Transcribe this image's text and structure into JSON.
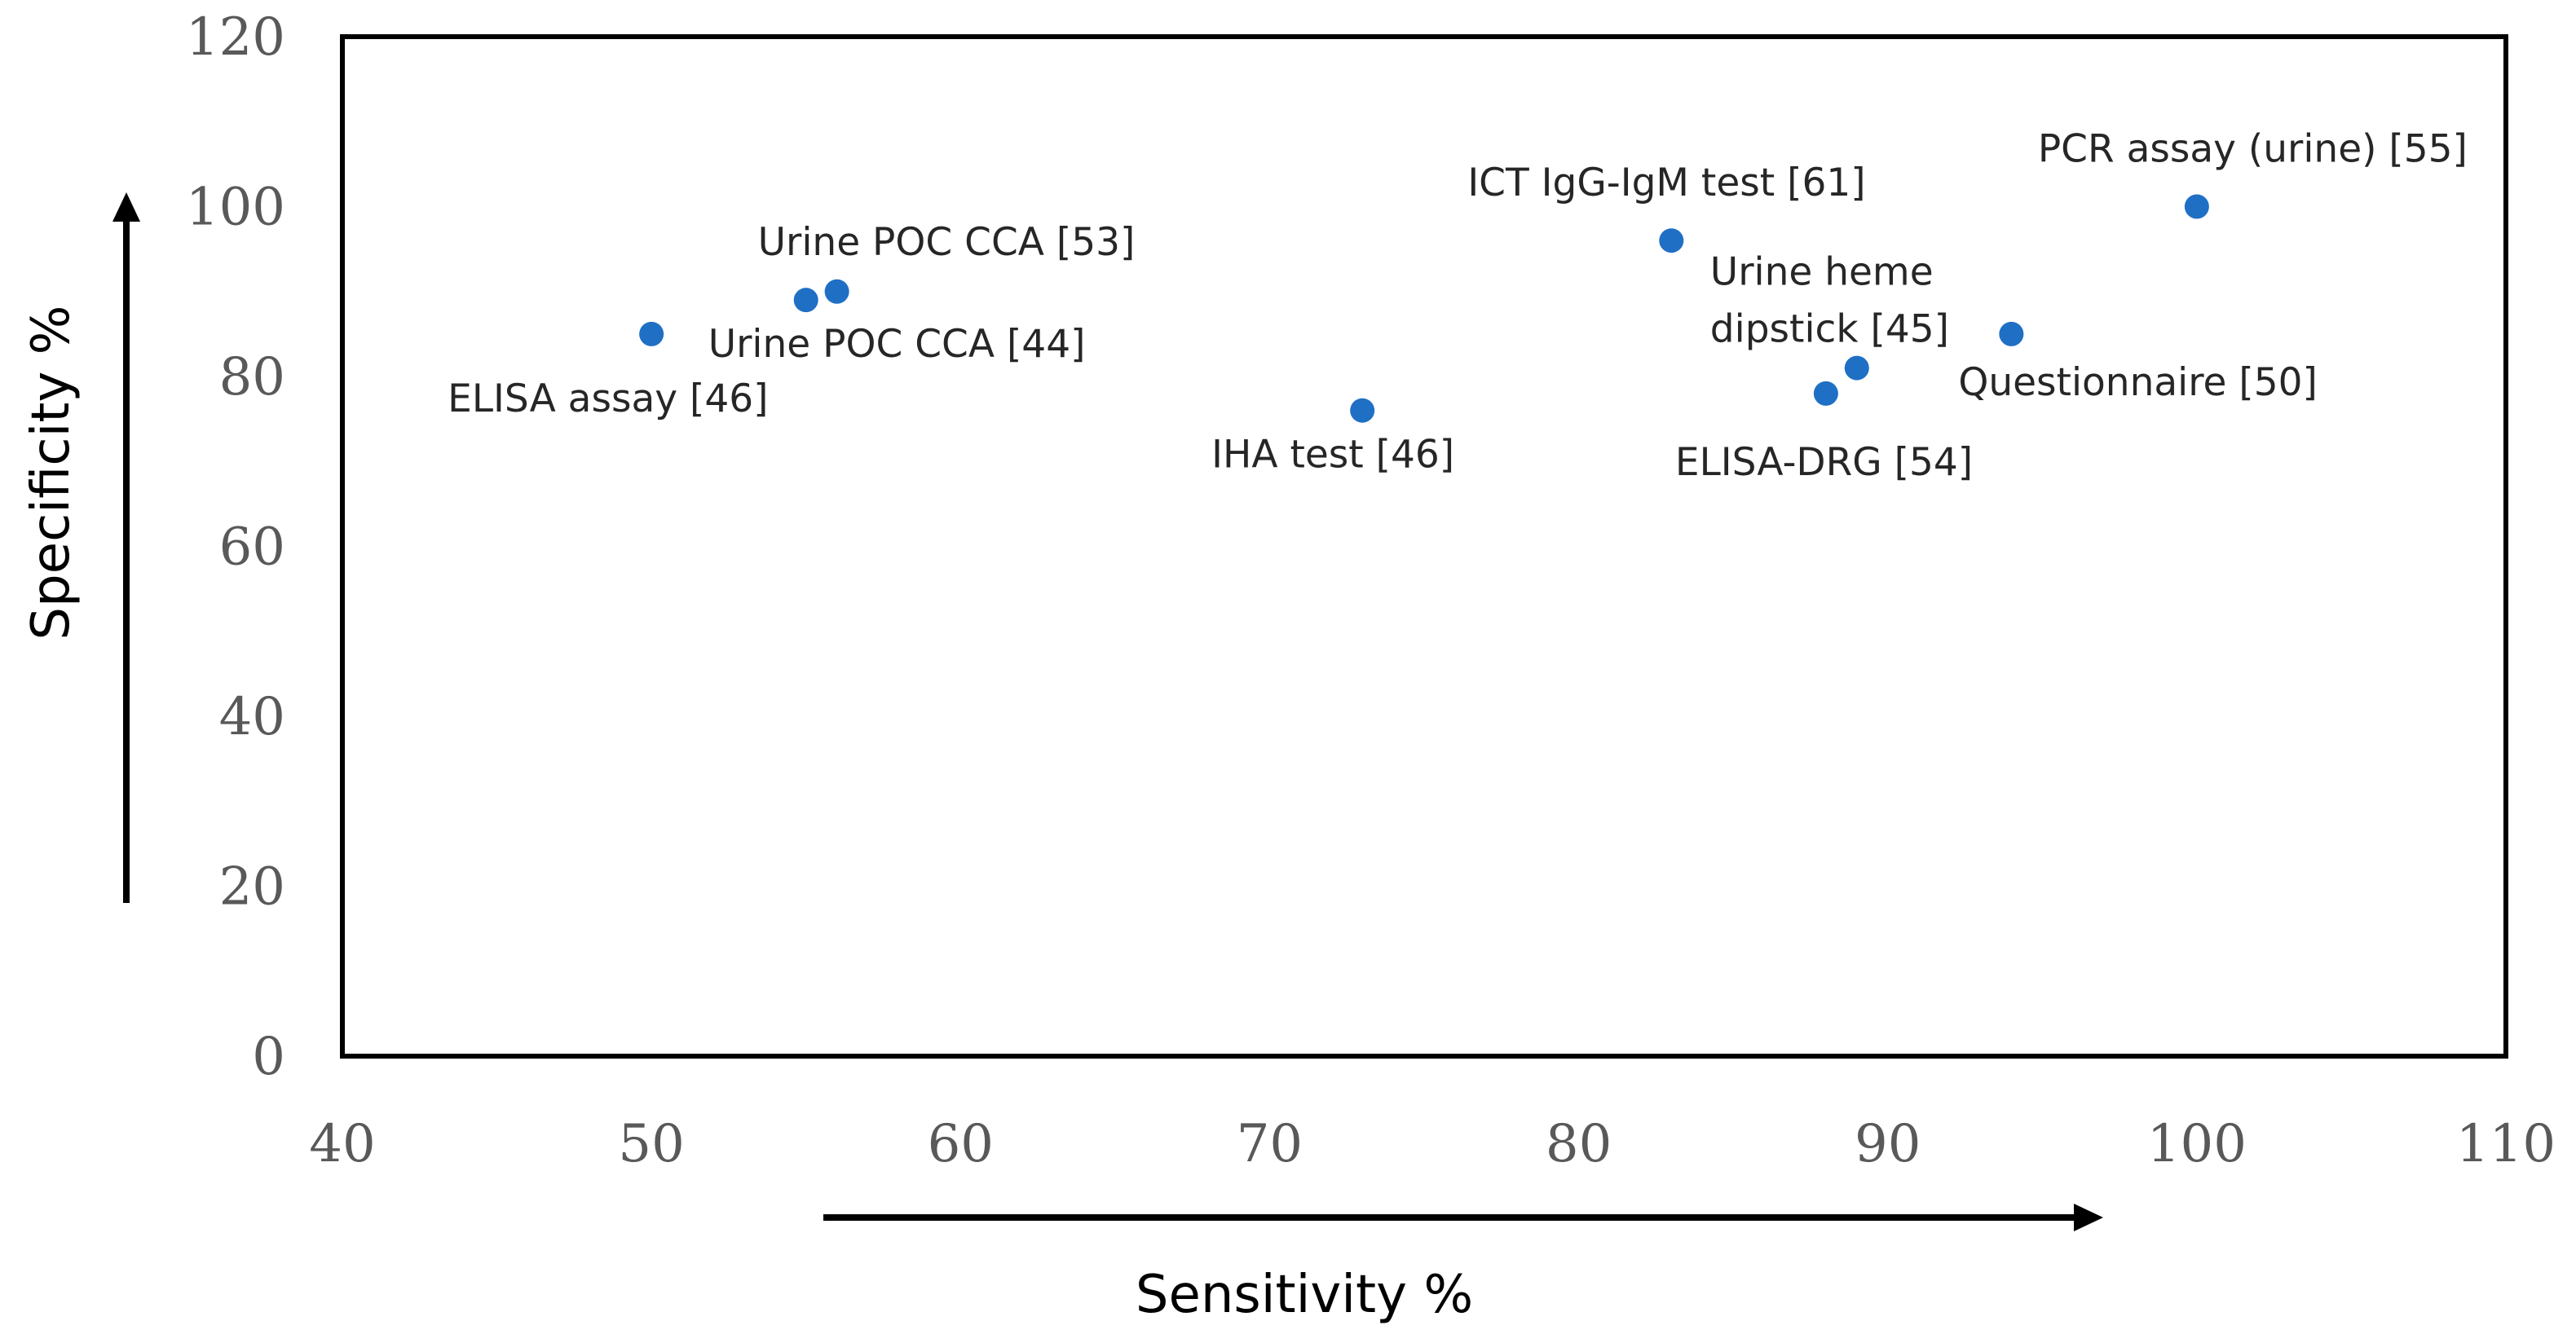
{
  "chart_data": {
    "type": "scatter",
    "title": "",
    "xlabel": "Sensitivity  %",
    "ylabel": "Specificity  %",
    "xlim": [
      40,
      110
    ],
    "ylim": [
      0,
      120
    ],
    "xticks": [
      40,
      50,
      60,
      70,
      80,
      90,
      100,
      110
    ],
    "yticks": [
      0,
      20,
      40,
      60,
      80,
      100,
      120
    ],
    "grid": false,
    "legend": "none",
    "marker_color": "#1f6fc5",
    "points": [
      {
        "x": 50,
        "y": 85,
        "label": "ELISA assay [46]"
      },
      {
        "x": 55,
        "y": 89,
        "label": "Urine POC CCA [44]"
      },
      {
        "x": 56,
        "y": 90,
        "label": "Urine POC CCA [53]"
      },
      {
        "x": 73,
        "y": 76,
        "label": "IHA test  [46]"
      },
      {
        "x": 83,
        "y": 96,
        "label": "ICT IgG-IgM test  [61]"
      },
      {
        "x": 88,
        "y": 78,
        "label": "ELISA-DRG  [54]"
      },
      {
        "x": 89,
        "y": 81,
        "label": [
          "Urine heme",
          "dipstick  [45]"
        ]
      },
      {
        "x": 94,
        "y": 85,
        "label": "Questionnaire [50]"
      },
      {
        "x": 100,
        "y": 100,
        "label": "PCR assay (urine) [55]"
      }
    ]
  }
}
